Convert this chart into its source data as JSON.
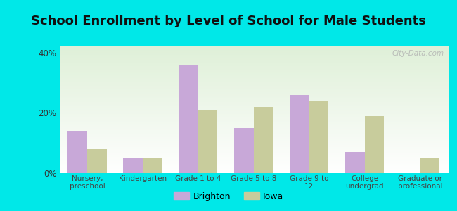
{
  "title": "School Enrollment by Level of School for Male Students",
  "categories": [
    "Nursery,\npreschool",
    "Kindergarten",
    "Grade 1 to 4",
    "Grade 5 to 8",
    "Grade 9 to\n12",
    "College\nundergrad",
    "Graduate or\nprofessional"
  ],
  "brighton_values": [
    14,
    5,
    36,
    15,
    26,
    7,
    0
  ],
  "iowa_values": [
    8,
    5,
    21,
    22,
    24,
    19,
    5
  ],
  "brighton_color": "#c8a8d8",
  "iowa_color": "#c8cc9c",
  "background_outer": "#00e8e8",
  "ylim": [
    0,
    42
  ],
  "yticks": [
    0,
    20,
    40
  ],
  "ytick_labels": [
    "0%",
    "20%",
    "40%"
  ],
  "bar_width": 0.35,
  "title_fontsize": 13,
  "legend_labels": [
    "Brighton",
    "Iowa"
  ],
  "watermark": "City-Data.com"
}
